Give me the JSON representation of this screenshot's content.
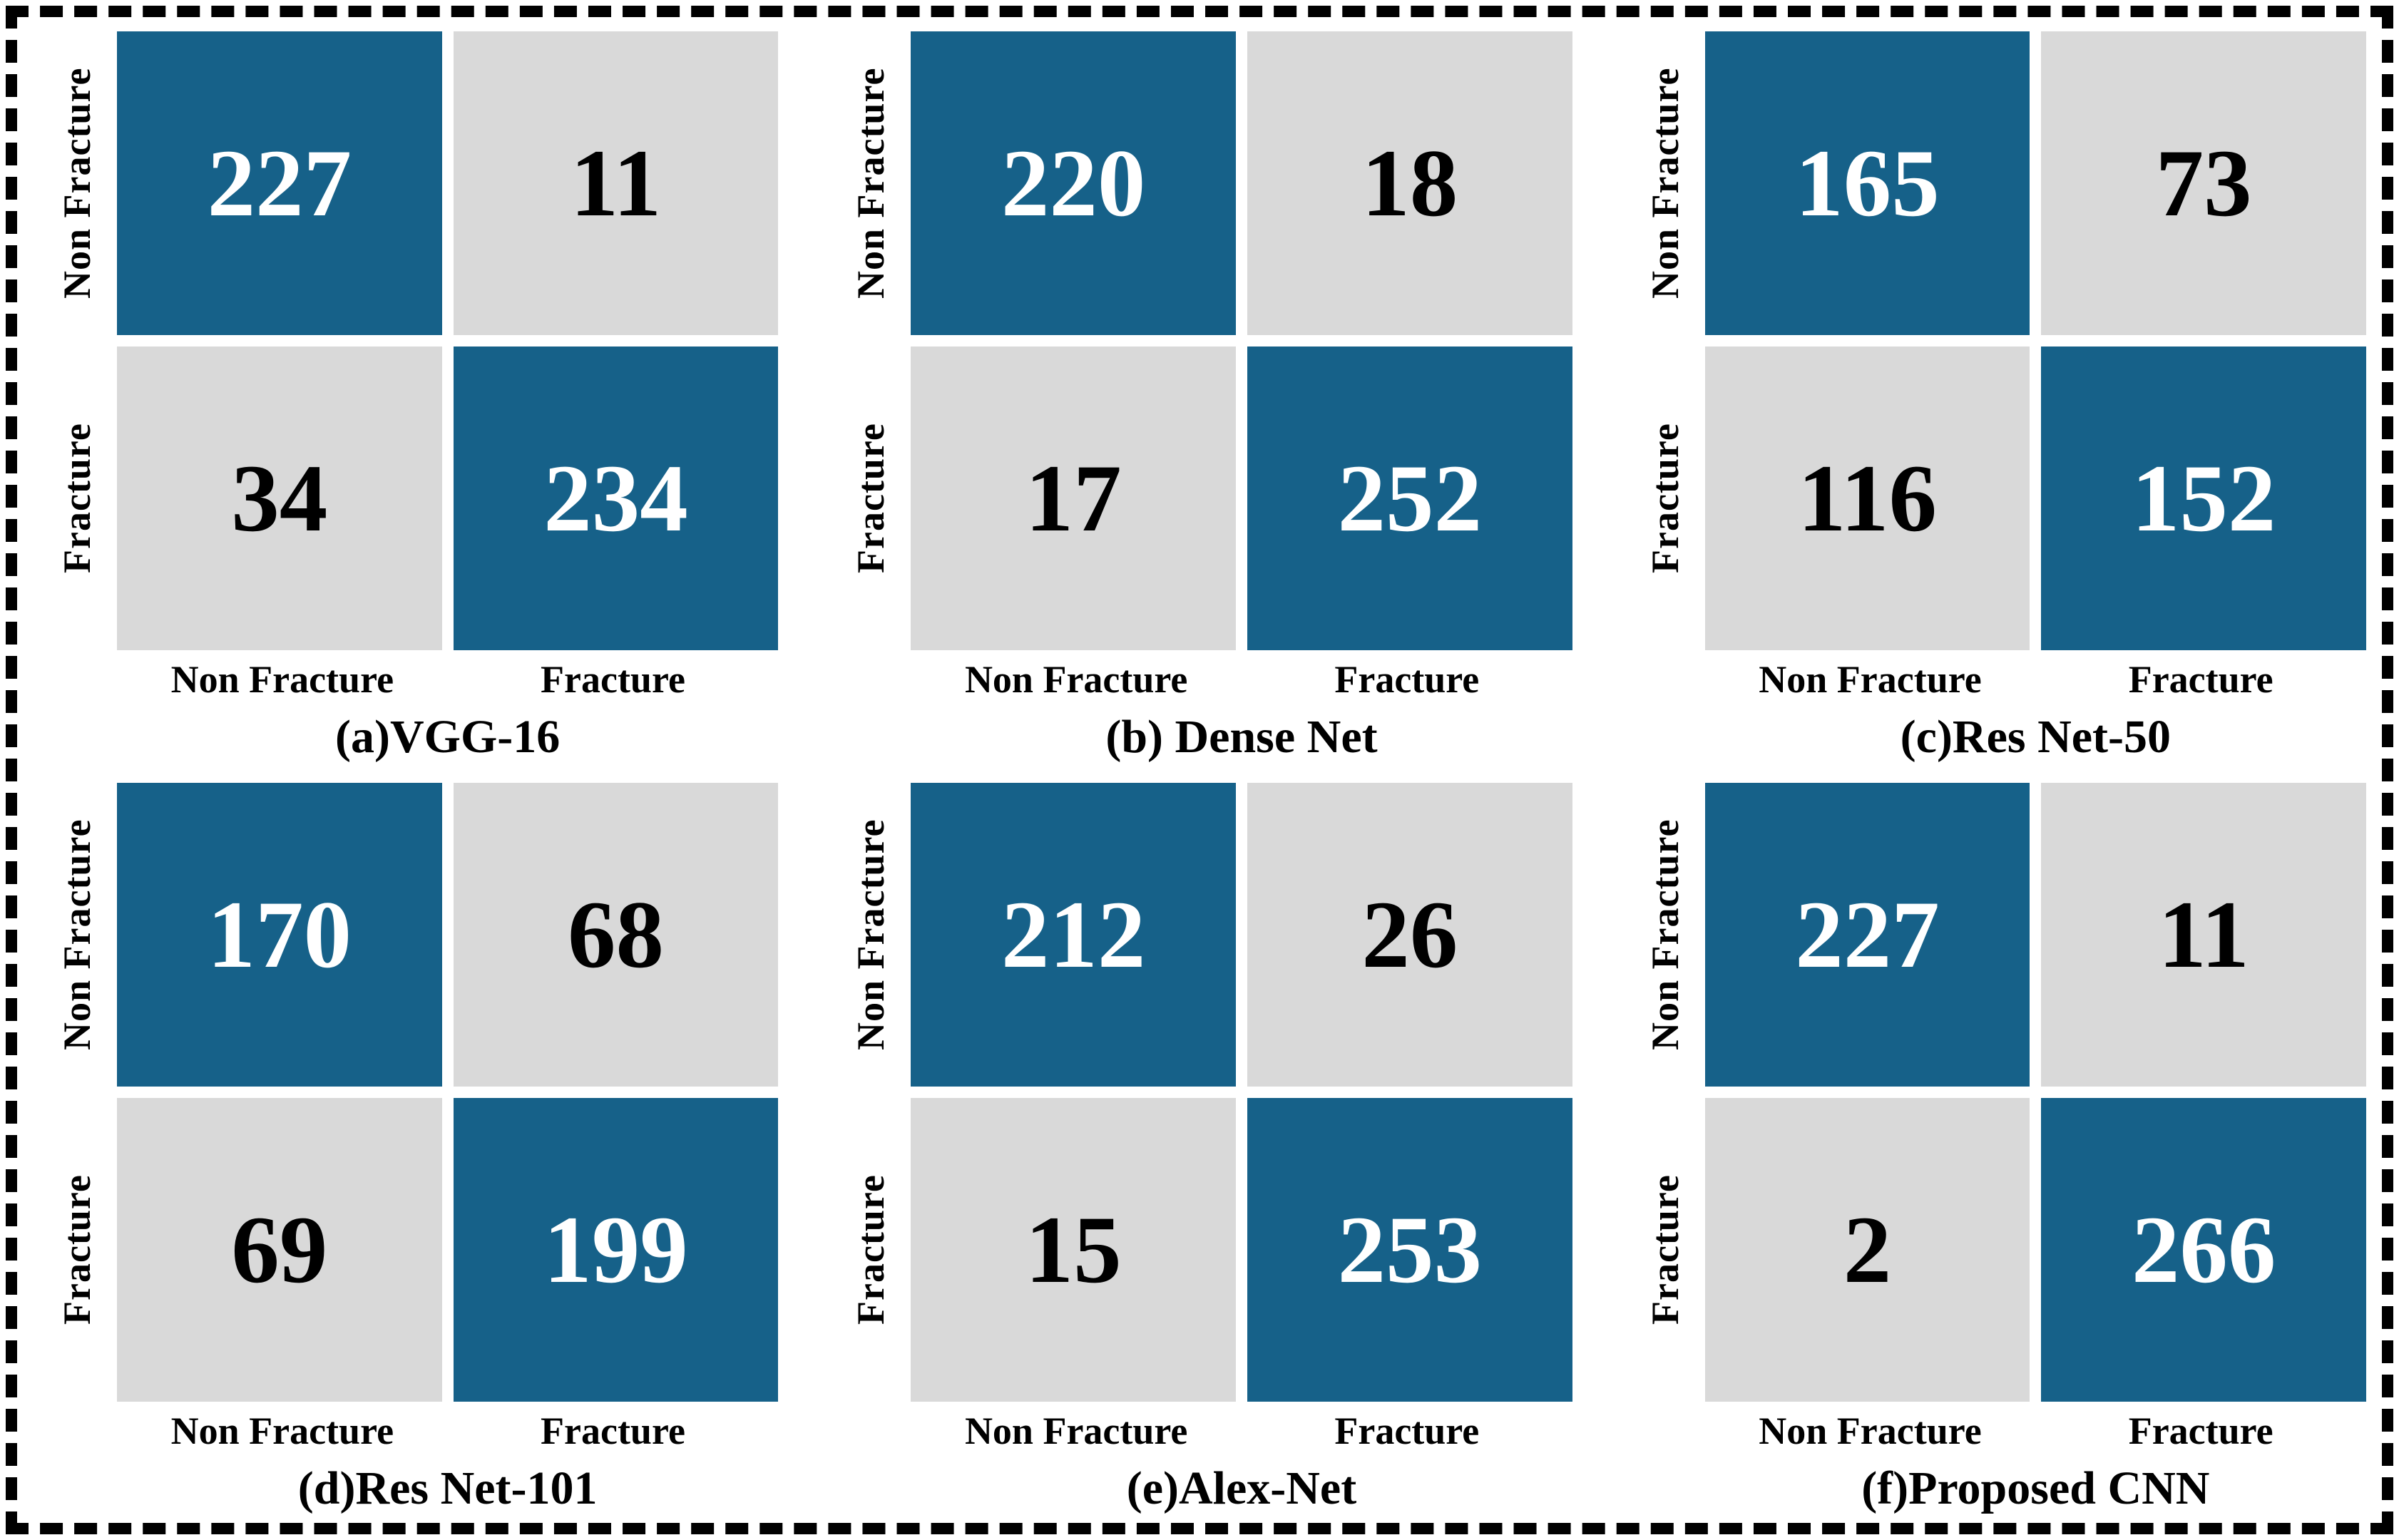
{
  "figure": {
    "description": "Six 2x2 confusion matrices comparing fracture classification models",
    "colors": {
      "background": "#ffffff",
      "frame_border": "#000000",
      "cell_diagonal": "#166189",
      "cell_off_diagonal": "#d9d9d9",
      "number_on_diagonal": "#ffffff",
      "number_on_off_diagonal": "#000000",
      "label_text": "#000000"
    }
  },
  "chart_data": [
    {
      "type": "heatmap",
      "title": "(a)VGG-16",
      "model": "VGG-16",
      "rows": [
        "Non Fracture",
        "Fracture"
      ],
      "cols": [
        "Non Fracture",
        "Fracture"
      ],
      "values": [
        [
          227,
          11
        ],
        [
          34,
          234
        ]
      ]
    },
    {
      "type": "heatmap",
      "title": "(b) Dense Net",
      "model": "Dense Net",
      "rows": [
        "Non Fracture",
        "Fracture"
      ],
      "cols": [
        "Non Fracture",
        "Fracture"
      ],
      "values": [
        [
          220,
          18
        ],
        [
          17,
          252
        ]
      ]
    },
    {
      "type": "heatmap",
      "title": "(c)Res Net-50",
      "model": "Res Net-50",
      "rows": [
        "Non Fracture",
        "Fracture"
      ],
      "cols": [
        "Non Fracture",
        "Fracture"
      ],
      "values": [
        [
          165,
          73
        ],
        [
          116,
          152
        ]
      ]
    },
    {
      "type": "heatmap",
      "title": "(d)Res Net-101",
      "model": "Res Net-101",
      "rows": [
        "Non Fracture",
        "Fracture"
      ],
      "cols": [
        "Non Fracture",
        "Fracture"
      ],
      "values": [
        [
          170,
          68
        ],
        [
          69,
          199
        ]
      ]
    },
    {
      "type": "heatmap",
      "title": "(e)Alex-Net",
      "model": "Alex-Net",
      "rows": [
        "Non Fracture",
        "Fracture"
      ],
      "cols": [
        "Non Fracture",
        "Fracture"
      ],
      "values": [
        [
          212,
          26
        ],
        [
          15,
          253
        ]
      ]
    },
    {
      "type": "heatmap",
      "title": "(f)Proposed CNN",
      "model": "Proposed CNN",
      "rows": [
        "Non Fracture",
        "Fracture"
      ],
      "cols": [
        "Non Fracture",
        "Fracture"
      ],
      "values": [
        [
          227,
          11
        ],
        [
          2,
          266
        ]
      ]
    }
  ]
}
